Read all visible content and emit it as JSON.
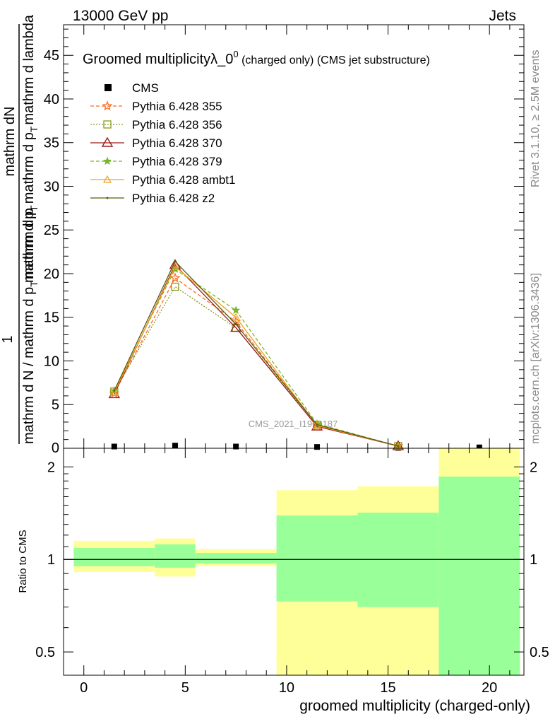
{
  "header": {
    "energy": "13000 GeV pp",
    "process": "Jets",
    "right_label_top": "Rivet 3.1.10, ≥ 2.5M events",
    "right_label_bottom": "mcplots.cern.ch [arXiv:1306.3436]"
  },
  "chart_data": [
    {
      "type": "line",
      "title_main": "Groomed multiplicityλ_0",
      "title_sup": "0",
      "title_sub": " (charged only) (CMS jet substructure)",
      "ylabel_top": "mathrm dN",
      "ylabel_top2": "mathrm d p",
      "ylabel_top3": "T",
      "ylabel_top4": "mathrm d p",
      "ylabel_top5": "T",
      "ylabel_top6": "mathrm d lambda",
      "ylabel_mid": "mathrm d p",
      "ylabel_one": "1",
      "ylabel_bottom": "mathrm d N / mathrm d p",
      "ylabel_bottom2": "T",
      "ylabel_bottom3": "mathrm d p",
      "ylim": [
        0,
        48.5
      ],
      "xlim": [
        -1,
        21.7
      ],
      "yticks": [
        5,
        10,
        15,
        20,
        25,
        30,
        35,
        40,
        45
      ],
      "watermark": "CMS_2021_I1920187",
      "x": [
        1.5,
        4.5,
        7.5,
        11.5,
        15.5,
        19.5
      ],
      "series": [
        {
          "name": "CMS",
          "color": "#000000",
          "values": [
            0.2,
            0.3,
            0.2,
            0.15,
            0.05,
            0.1
          ]
        },
        {
          "name": "Pythia 6.428 355",
          "color": "#ff6a1f",
          "values": [
            6.3,
            19.5,
            14.5,
            2.6,
            0.25,
            null
          ]
        },
        {
          "name": "Pythia 6.428 356",
          "color": "#8a9a1a",
          "values": [
            6.5,
            18.5,
            13.8,
            2.7,
            0.25,
            null
          ]
        },
        {
          "name": "Pythia 6.428 370",
          "color": "#9b1b1b",
          "values": [
            6.2,
            21.0,
            13.8,
            2.5,
            0.25,
            null
          ]
        },
        {
          "name": "Pythia 6.428 379",
          "color": "#7ab52a",
          "values": [
            6.6,
            20.5,
            15.8,
            2.8,
            0.25,
            null
          ]
        },
        {
          "name": "Pythia 6.428 ambt1",
          "color": "#f0a020",
          "values": [
            6.4,
            20.8,
            15.0,
            2.6,
            0.25,
            null
          ]
        },
        {
          "name": "Pythia 6.428 z2",
          "color": "#5a5a10",
          "values": [
            6.6,
            21.4,
            14.2,
            2.7,
            0.25,
            null
          ]
        }
      ]
    },
    {
      "type": "area",
      "ylabel": "Ratio to CMS",
      "xlabel": "groomed multiplicity (charged-only)",
      "yscale": "log",
      "ylim": [
        0.42,
        2.3
      ],
      "xlim": [
        -1,
        21.7
      ],
      "yticks": [
        0.5,
        1,
        2
      ],
      "ytick_labels": [
        "0.5",
        "1",
        "2"
      ],
      "xticks": [
        0,
        5,
        10,
        15,
        20
      ],
      "xtick_labels": [
        "0",
        "5",
        "10",
        "15",
        "20"
      ],
      "bins": [
        {
          "x0": -0.5,
          "x1": 3.5,
          "yellow": [
            0.91,
            1.15
          ],
          "green": [
            0.95,
            1.09
          ]
        },
        {
          "x0": 3.5,
          "x1": 5.5,
          "yellow": [
            0.88,
            1.17
          ],
          "green": [
            0.94,
            1.12
          ]
        },
        {
          "x0": 5.5,
          "x1": 9.5,
          "yellow": [
            0.95,
            1.08
          ],
          "green": [
            0.97,
            1.05
          ]
        },
        {
          "x0": 9.5,
          "x1": 13.5,
          "yellow": [
            0.42,
            1.68
          ],
          "green": [
            0.73,
            1.39
          ]
        },
        {
          "x0": 13.5,
          "x1": 17.5,
          "yellow": [
            0.42,
            1.73
          ],
          "green": [
            0.7,
            1.42
          ]
        },
        {
          "x0": 17.5,
          "x1": 21.5,
          "yellow": [
            0.42,
            2.3
          ],
          "green": [
            0.42,
            1.86
          ]
        }
      ],
      "band_colors": {
        "yellow": "#ffff99",
        "green": "#99ff99"
      }
    }
  ]
}
